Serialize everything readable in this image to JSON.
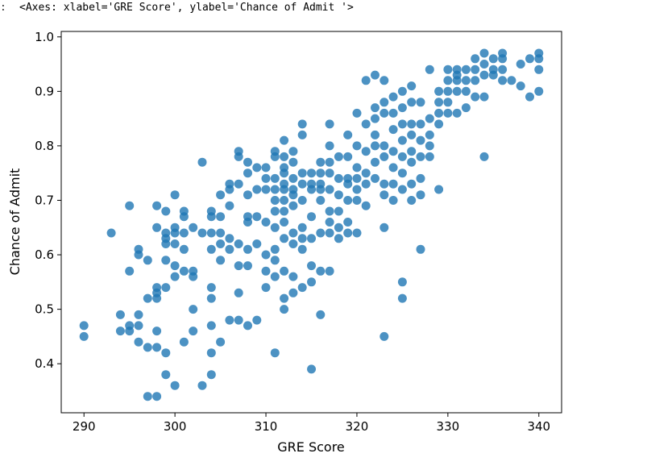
{
  "output": {
    "prompt_marker": ":",
    "text": "<Axes: xlabel='GRE Score', ylabel='Chance of Admit '>"
  },
  "colors": {
    "marker": "#1f77b4",
    "axis": "#000000"
  },
  "chart_data": {
    "type": "scatter",
    "xlabel": "GRE Score",
    "ylabel": "Chance of Admit",
    "xlim": [
      287.5,
      342.5
    ],
    "ylim": [
      0.31,
      1.01
    ],
    "xticks": [
      290,
      300,
      310,
      320,
      330,
      340
    ],
    "yticks": [
      0.4,
      0.5,
      0.6,
      0.7,
      0.8,
      0.9,
      1.0
    ],
    "grid": false,
    "points": [
      [
        290,
        0.47
      ],
      [
        290,
        0.45
      ],
      [
        293,
        0.64
      ],
      [
        294,
        0.49
      ],
      [
        294,
        0.46
      ],
      [
        295,
        0.69
      ],
      [
        295,
        0.57
      ],
      [
        295,
        0.47
      ],
      [
        295,
        0.46
      ],
      [
        296,
        0.61
      ],
      [
        296,
        0.6
      ],
      [
        296,
        0.49
      ],
      [
        296,
        0.47
      ],
      [
        296,
        0.44
      ],
      [
        297,
        0.59
      ],
      [
        297,
        0.52
      ],
      [
        297,
        0.43
      ],
      [
        297,
        0.34
      ],
      [
        298,
        0.69
      ],
      [
        298,
        0.65
      ],
      [
        298,
        0.54
      ],
      [
        298,
        0.53
      ],
      [
        298,
        0.52
      ],
      [
        298,
        0.46
      ],
      [
        298,
        0.43
      ],
      [
        298,
        0.34
      ],
      [
        299,
        0.68
      ],
      [
        299,
        0.64
      ],
      [
        299,
        0.63
      ],
      [
        299,
        0.62
      ],
      [
        299,
        0.59
      ],
      [
        299,
        0.54
      ],
      [
        299,
        0.42
      ],
      [
        299,
        0.38
      ],
      [
        300,
        0.71
      ],
      [
        300,
        0.65
      ],
      [
        300,
        0.64
      ],
      [
        300,
        0.62
      ],
      [
        300,
        0.58
      ],
      [
        300,
        0.56
      ],
      [
        300,
        0.36
      ],
      [
        301,
        0.68
      ],
      [
        301,
        0.67
      ],
      [
        301,
        0.64
      ],
      [
        301,
        0.61
      ],
      [
        301,
        0.57
      ],
      [
        301,
        0.44
      ],
      [
        302,
        0.65
      ],
      [
        302,
        0.57
      ],
      [
        302,
        0.56
      ],
      [
        302,
        0.5
      ],
      [
        302,
        0.46
      ],
      [
        303,
        0.77
      ],
      [
        303,
        0.64
      ],
      [
        303,
        0.36
      ],
      [
        304,
        0.68
      ],
      [
        304,
        0.67
      ],
      [
        304,
        0.64
      ],
      [
        304,
        0.61
      ],
      [
        304,
        0.54
      ],
      [
        304,
        0.52
      ],
      [
        304,
        0.47
      ],
      [
        304,
        0.42
      ],
      [
        304,
        0.38
      ],
      [
        305,
        0.71
      ],
      [
        305,
        0.67
      ],
      [
        305,
        0.64
      ],
      [
        305,
        0.62
      ],
      [
        305,
        0.59
      ],
      [
        305,
        0.44
      ],
      [
        306,
        0.73
      ],
      [
        306,
        0.72
      ],
      [
        306,
        0.69
      ],
      [
        306,
        0.63
      ],
      [
        306,
        0.61
      ],
      [
        306,
        0.48
      ],
      [
        307,
        0.79
      ],
      [
        307,
        0.78
      ],
      [
        307,
        0.73
      ],
      [
        307,
        0.62
      ],
      [
        307,
        0.58
      ],
      [
        307,
        0.53
      ],
      [
        307,
        0.48
      ],
      [
        308,
        0.77
      ],
      [
        308,
        0.75
      ],
      [
        308,
        0.71
      ],
      [
        308,
        0.67
      ],
      [
        308,
        0.66
      ],
      [
        308,
        0.61
      ],
      [
        308,
        0.58
      ],
      [
        308,
        0.47
      ],
      [
        309,
        0.76
      ],
      [
        309,
        0.72
      ],
      [
        309,
        0.67
      ],
      [
        309,
        0.62
      ],
      [
        309,
        0.48
      ],
      [
        310,
        0.76
      ],
      [
        310,
        0.74
      ],
      [
        310,
        0.72
      ],
      [
        310,
        0.66
      ],
      [
        310,
        0.6
      ],
      [
        310,
        0.57
      ],
      [
        310,
        0.54
      ],
      [
        311,
        0.79
      ],
      [
        311,
        0.78
      ],
      [
        311,
        0.74
      ],
      [
        311,
        0.72
      ],
      [
        311,
        0.7
      ],
      [
        311,
        0.68
      ],
      [
        311,
        0.65
      ],
      [
        311,
        0.61
      ],
      [
        311,
        0.59
      ],
      [
        311,
        0.56
      ],
      [
        311,
        0.42
      ],
      [
        312,
        0.81
      ],
      [
        312,
        0.78
      ],
      [
        312,
        0.76
      ],
      [
        312,
        0.75
      ],
      [
        312,
        0.73
      ],
      [
        312,
        0.72
      ],
      [
        312,
        0.7
      ],
      [
        312,
        0.68
      ],
      [
        312,
        0.66
      ],
      [
        312,
        0.63
      ],
      [
        312,
        0.57
      ],
      [
        312,
        0.52
      ],
      [
        312,
        0.5
      ],
      [
        313,
        0.79
      ],
      [
        313,
        0.77
      ],
      [
        313,
        0.74
      ],
      [
        313,
        0.72
      ],
      [
        313,
        0.71
      ],
      [
        313,
        0.69
      ],
      [
        313,
        0.64
      ],
      [
        313,
        0.62
      ],
      [
        313,
        0.56
      ],
      [
        313,
        0.53
      ],
      [
        314,
        0.84
      ],
      [
        314,
        0.82
      ],
      [
        314,
        0.75
      ],
      [
        314,
        0.73
      ],
      [
        314,
        0.7
      ],
      [
        314,
        0.65
      ],
      [
        314,
        0.63
      ],
      [
        314,
        0.61
      ],
      [
        314,
        0.54
      ],
      [
        315,
        0.75
      ],
      [
        315,
        0.73
      ],
      [
        315,
        0.72
      ],
      [
        315,
        0.67
      ],
      [
        315,
        0.63
      ],
      [
        315,
        0.58
      ],
      [
        315,
        0.55
      ],
      [
        315,
        0.39
      ],
      [
        316,
        0.77
      ],
      [
        316,
        0.75
      ],
      [
        316,
        0.73
      ],
      [
        316,
        0.72
      ],
      [
        316,
        0.7
      ],
      [
        316,
        0.64
      ],
      [
        316,
        0.57
      ],
      [
        316,
        0.49
      ],
      [
        317,
        0.84
      ],
      [
        317,
        0.8
      ],
      [
        317,
        0.77
      ],
      [
        317,
        0.75
      ],
      [
        317,
        0.72
      ],
      [
        317,
        0.68
      ],
      [
        317,
        0.66
      ],
      [
        317,
        0.64
      ],
      [
        317,
        0.57
      ],
      [
        318,
        0.78
      ],
      [
        318,
        0.74
      ],
      [
        318,
        0.71
      ],
      [
        318,
        0.68
      ],
      [
        318,
        0.65
      ],
      [
        318,
        0.63
      ],
      [
        319,
        0.82
      ],
      [
        319,
        0.78
      ],
      [
        319,
        0.74
      ],
      [
        319,
        0.73
      ],
      [
        319,
        0.7
      ],
      [
        319,
        0.66
      ],
      [
        319,
        0.64
      ],
      [
        320,
        0.86
      ],
      [
        320,
        0.8
      ],
      [
        320,
        0.76
      ],
      [
        320,
        0.74
      ],
      [
        320,
        0.72
      ],
      [
        320,
        0.7
      ],
      [
        320,
        0.64
      ],
      [
        321,
        0.92
      ],
      [
        321,
        0.84
      ],
      [
        321,
        0.79
      ],
      [
        321,
        0.75
      ],
      [
        321,
        0.73
      ],
      [
        321,
        0.69
      ],
      [
        322,
        0.93
      ],
      [
        322,
        0.87
      ],
      [
        322,
        0.85
      ],
      [
        322,
        0.82
      ],
      [
        322,
        0.8
      ],
      [
        322,
        0.77
      ],
      [
        322,
        0.74
      ],
      [
        323,
        0.92
      ],
      [
        323,
        0.88
      ],
      [
        323,
        0.86
      ],
      [
        323,
        0.8
      ],
      [
        323,
        0.78
      ],
      [
        323,
        0.73
      ],
      [
        323,
        0.71
      ],
      [
        323,
        0.65
      ],
      [
        323,
        0.45
      ],
      [
        324,
        0.89
      ],
      [
        324,
        0.86
      ],
      [
        324,
        0.83
      ],
      [
        324,
        0.79
      ],
      [
        324,
        0.76
      ],
      [
        324,
        0.73
      ],
      [
        324,
        0.7
      ],
      [
        325,
        0.9
      ],
      [
        325,
        0.87
      ],
      [
        325,
        0.84
      ],
      [
        325,
        0.81
      ],
      [
        325,
        0.78
      ],
      [
        325,
        0.75
      ],
      [
        325,
        0.72
      ],
      [
        325,
        0.55
      ],
      [
        325,
        0.52
      ],
      [
        326,
        0.91
      ],
      [
        326,
        0.88
      ],
      [
        326,
        0.84
      ],
      [
        326,
        0.82
      ],
      [
        326,
        0.79
      ],
      [
        326,
        0.77
      ],
      [
        326,
        0.73
      ],
      [
        326,
        0.7
      ],
      [
        327,
        0.88
      ],
      [
        327,
        0.84
      ],
      [
        327,
        0.81
      ],
      [
        327,
        0.78
      ],
      [
        327,
        0.74
      ],
      [
        327,
        0.71
      ],
      [
        327,
        0.61
      ],
      [
        328,
        0.94
      ],
      [
        328,
        0.85
      ],
      [
        328,
        0.82
      ],
      [
        328,
        0.8
      ],
      [
        328,
        0.78
      ],
      [
        329,
        0.9
      ],
      [
        329,
        0.88
      ],
      [
        329,
        0.86
      ],
      [
        329,
        0.84
      ],
      [
        329,
        0.72
      ],
      [
        330,
        0.94
      ],
      [
        330,
        0.92
      ],
      [
        330,
        0.9
      ],
      [
        330,
        0.88
      ],
      [
        330,
        0.86
      ],
      [
        331,
        0.94
      ],
      [
        331,
        0.93
      ],
      [
        331,
        0.92
      ],
      [
        331,
        0.9
      ],
      [
        331,
        0.86
      ],
      [
        332,
        0.94
      ],
      [
        332,
        0.92
      ],
      [
        332,
        0.9
      ],
      [
        332,
        0.87
      ],
      [
        333,
        0.96
      ],
      [
        333,
        0.94
      ],
      [
        333,
        0.92
      ],
      [
        333,
        0.89
      ],
      [
        334,
        0.97
      ],
      [
        334,
        0.95
      ],
      [
        334,
        0.93
      ],
      [
        334,
        0.89
      ],
      [
        334,
        0.78
      ],
      [
        335,
        0.96
      ],
      [
        335,
        0.94
      ],
      [
        335,
        0.93
      ],
      [
        336,
        0.97
      ],
      [
        336,
        0.96
      ],
      [
        336,
        0.94
      ],
      [
        336,
        0.92
      ],
      [
        337,
        0.92
      ],
      [
        338,
        0.95
      ],
      [
        338,
        0.91
      ],
      [
        339,
        0.96
      ],
      [
        339,
        0.89
      ],
      [
        340,
        0.97
      ],
      [
        340,
        0.96
      ],
      [
        340,
        0.94
      ],
      [
        340,
        0.9
      ]
    ]
  }
}
